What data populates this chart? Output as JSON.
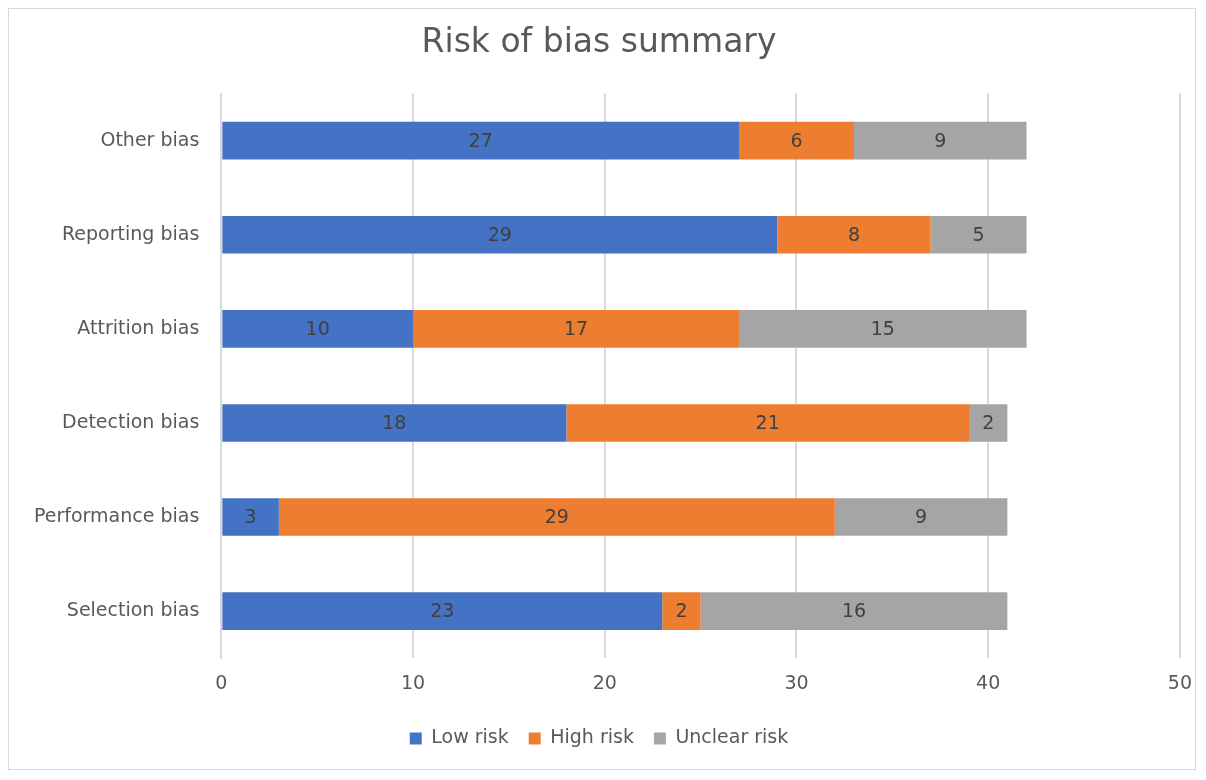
{
  "chart_data": {
    "type": "bar",
    "orientation": "horizontal",
    "stacked": true,
    "title": "Risk of bias summary",
    "categories": [
      "Other bias",
      "Reporting bias",
      "Attrition bias",
      "Detection bias",
      "Performance bias",
      "Selection bias"
    ],
    "series": [
      {
        "name": "Low risk",
        "color": "#4472c4",
        "values": [
          27,
          29,
          10,
          18,
          3,
          23
        ]
      },
      {
        "name": "High risk",
        "color": "#ed7d31",
        "values": [
          6,
          8,
          17,
          21,
          29,
          2
        ]
      },
      {
        "name": "Unclear risk",
        "color": "#a5a5a5",
        "values": [
          9,
          5,
          15,
          2,
          9,
          16
        ]
      }
    ],
    "xlim": [
      0,
      50
    ],
    "xticks": [
      0,
      10,
      20,
      30,
      40,
      50
    ],
    "grid": "x",
    "legend": "bottom",
    "data_labels": true
  }
}
